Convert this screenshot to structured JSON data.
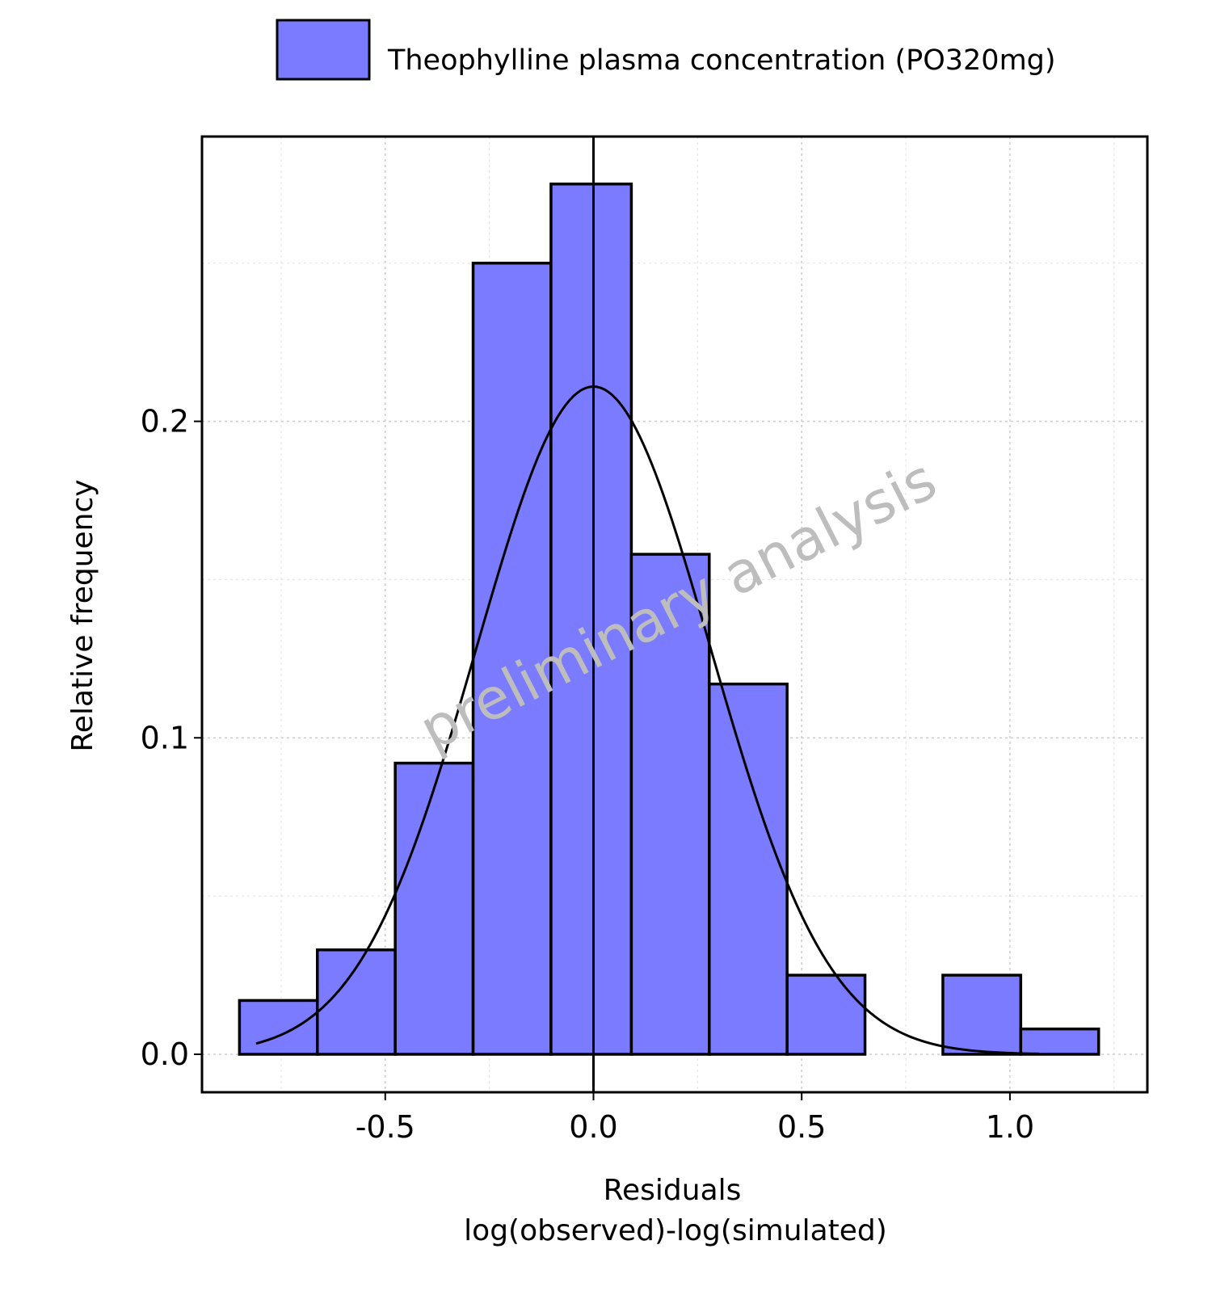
{
  "legend": {
    "label": "Theophylline plasma concentration (PO320mg)",
    "swatch_color": "#7b7bff"
  },
  "watermark": "preliminary analysis",
  "chart_data": {
    "type": "bar",
    "subtype": "histogram",
    "xlabel_line1": "Residuals",
    "xlabel_line2": "log(observed)-log(simulated)",
    "ylabel": "Relative frequency",
    "xlim": [
      -0.94,
      1.33
    ],
    "ylim": [
      -0.012,
      0.29
    ],
    "x_ticks": [
      -0.5,
      0.0,
      0.5,
      1.0
    ],
    "x_tick_labels": [
      "-0.5",
      "0.0",
      "0.5",
      "1.0"
    ],
    "y_ticks": [
      0.0,
      0.1,
      0.2
    ],
    "y_tick_labels": [
      "0.0",
      "0.1",
      "0.2"
    ],
    "grid": true,
    "legend_position": "top",
    "bar_color": "#7b7bff",
    "bins": [
      {
        "x0": -0.85,
        "x1": -0.663,
        "value": 0.017
      },
      {
        "x0": -0.663,
        "x1": -0.476,
        "value": 0.033
      },
      {
        "x0": -0.476,
        "x1": -0.289,
        "value": 0.092
      },
      {
        "x0": -0.289,
        "x1": -0.102,
        "value": 0.25
      },
      {
        "x0": -0.102,
        "x1": 0.091,
        "value": 0.275
      },
      {
        "x0": 0.091,
        "x1": 0.278,
        "value": 0.158
      },
      {
        "x0": 0.278,
        "x1": 0.465,
        "value": 0.117
      },
      {
        "x0": 0.465,
        "x1": 0.652,
        "value": 0.025
      },
      {
        "x0": 0.652,
        "x1": 0.839,
        "value": 0.0
      },
      {
        "x0": 0.839,
        "x1": 1.026,
        "value": 0.025
      },
      {
        "x0": 1.026,
        "x1": 1.213,
        "value": 0.008
      }
    ],
    "normal_curve": {
      "mean": 0.0,
      "sd": 0.282,
      "peak": 0.211,
      "x_start": -0.81,
      "x_end": 1.07
    },
    "reference_line_x": 0.0
  }
}
